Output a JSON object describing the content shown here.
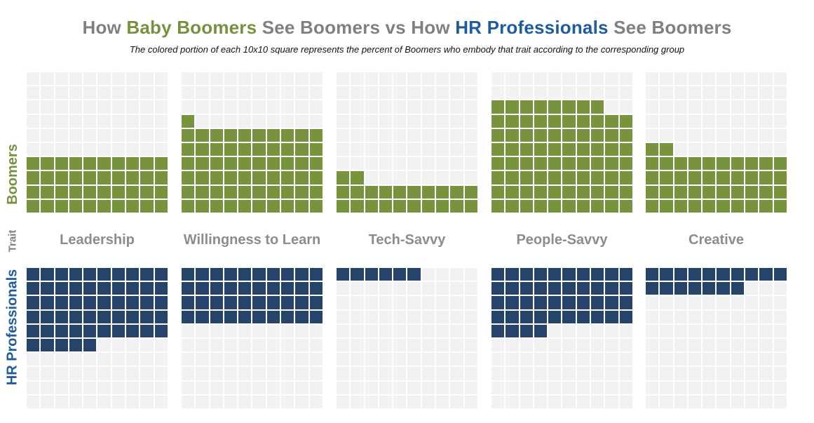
{
  "title_parts": [
    {
      "text": "How ",
      "color": "#808080"
    },
    {
      "text": "Baby Boomers",
      "color": "#76923C"
    },
    {
      "text": " See Boomers vs How ",
      "color": "#808080"
    },
    {
      "text": "HR Professionals",
      "color": "#205B9E"
    },
    {
      "text": " See Boomers",
      "color": "#808080"
    }
  ],
  "subtitle": "The colored portion of each 10x10 square represents the percent of Boomers who embody that trait according to the corresponding group",
  "side_labels": {
    "top": {
      "text": "Boomers",
      "color": "#76923C"
    },
    "middle": {
      "text": "Trait",
      "color": "#808080"
    },
    "bottom": {
      "text": "HR Professionals",
      "color": "#205B9E"
    }
  },
  "chart_data": {
    "type": "waffle",
    "title": "How Baby Boomers See Boomers vs How HR Professionals See Boomers",
    "subtitle": "The colored portion of each 10x10 square represents the percent of Boomers who embody that trait according to the corresponding group",
    "grid": "10x10",
    "unit": "percent",
    "categories": [
      "Leadership",
      "Willingness to Learn",
      "Tech-Savvy",
      "People-Savvy",
      "Creative"
    ],
    "series": [
      {
        "name": "Boomers",
        "values": [
          40,
          61,
          22,
          78,
          42
        ],
        "color": "#78933D",
        "fill_direction": "bottom-up"
      },
      {
        "name": "HR Professionals",
        "values": [
          55,
          40,
          6,
          44,
          17
        ],
        "color": "#264369",
        "fill_direction": "top-down"
      }
    ],
    "empty_color": "#F2F2F2",
    "legend_position": "left",
    "grid_lines": "white"
  }
}
